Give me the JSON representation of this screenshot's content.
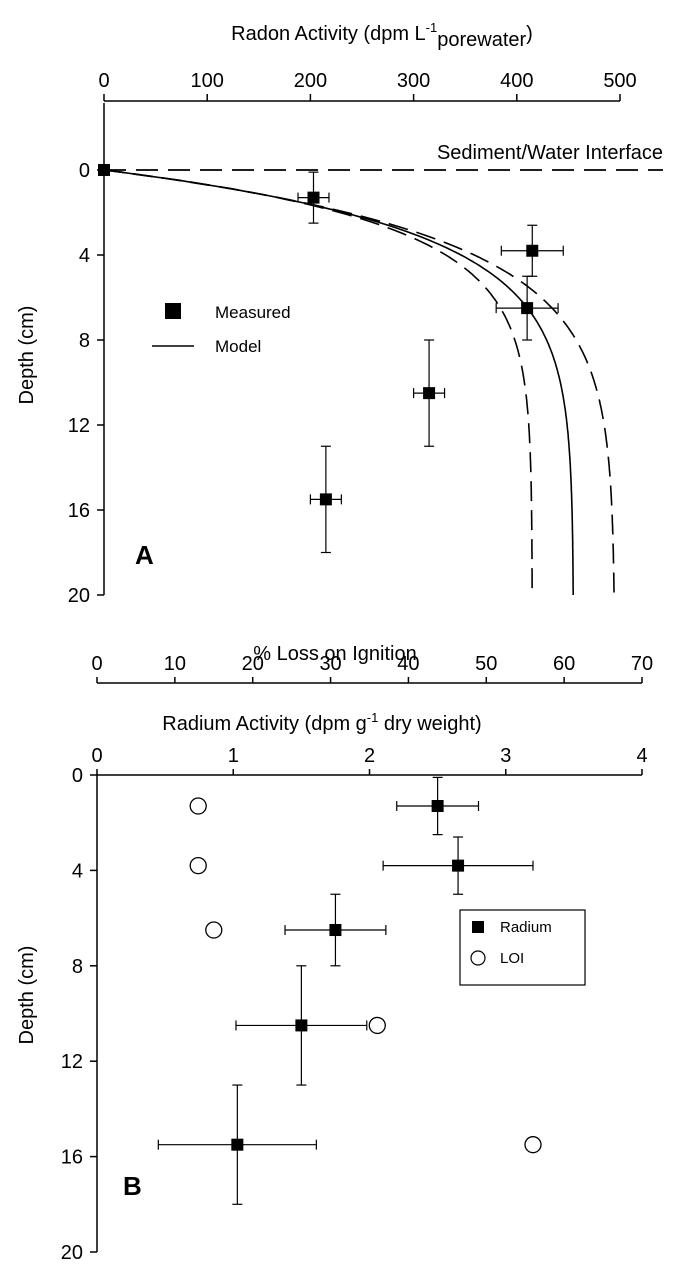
{
  "chart_data": [
    {
      "panel": "A",
      "type": "scatter",
      "x_axis": {
        "label": "Radon Activity (dpm L",
        "label_sup": "-1",
        "label_sub": "porewater",
        "label_end": ")",
        "range": [
          0,
          500
        ],
        "ticks": [
          0,
          100,
          200,
          300,
          400,
          500
        ],
        "position": "top"
      },
      "y_axis": {
        "label": "Depth (cm)",
        "range": [
          0,
          20
        ],
        "ticks": [
          0,
          4,
          8,
          12,
          16,
          20
        ],
        "inverted": true
      },
      "annotation": "Sediment/Water Interface",
      "panel_label": "A",
      "series": [
        {
          "name": "Measured",
          "style": "filled-square",
          "points": [
            {
              "x": 0,
              "y": 0
            },
            {
              "x": 203,
              "y": 1.3,
              "xerr": 15,
              "yerr": 1.2
            },
            {
              "x": 415,
              "y": 3.8,
              "xerr": 30,
              "yerr": 1.2
            },
            {
              "x": 410,
              "y": 6.5,
              "xerr": 30,
              "yerr": 1.5
            },
            {
              "x": 315,
              "y": 10.5,
              "xerr": 15,
              "yerr": 2.5
            },
            {
              "x": 215,
              "y": 15.5,
              "xerr": 15,
              "yerr": 2.5
            }
          ]
        },
        {
          "name": "Model",
          "style": "solid-line",
          "curve": {
            "asymptote": 455,
            "scale_depth": 2.8
          }
        },
        {
          "style": "dashed-line",
          "curve": {
            "asymptote": 415,
            "scale_depth": 2.5
          }
        },
        {
          "style": "dashed-line",
          "curve": {
            "asymptote": 495,
            "scale_depth": 3.1
          }
        }
      ],
      "interface_line": {
        "y": 0,
        "style": "dashed"
      }
    },
    {
      "panel": "B",
      "type": "scatter",
      "x_axis_top": {
        "label": "% Loss on Ignition",
        "range": [
          0,
          70
        ],
        "ticks": [
          0,
          10,
          20,
          30,
          40,
          50,
          60,
          70
        ]
      },
      "x_axis": {
        "label": "Radium Activity (dpm g",
        "label_sup": "-1",
        "label_end": " dry weight)",
        "range": [
          0,
          4
        ],
        "ticks": [
          0,
          1,
          2,
          3,
          4
        ]
      },
      "y_axis": {
        "label": "Depth (cm)",
        "range": [
          0,
          20
        ],
        "ticks": [
          0,
          4,
          8,
          12,
          16,
          20
        ],
        "inverted": true
      },
      "panel_label": "B",
      "series": [
        {
          "name": "Radium",
          "axis": "radium",
          "style": "filled-square",
          "points": [
            {
              "x": 2.5,
              "y": 1.3,
              "xerr": 0.3,
              "yerr": 1.2
            },
            {
              "x": 2.65,
              "y": 3.8,
              "xerr": 0.55,
              "yerr": 1.2
            },
            {
              "x": 1.75,
              "y": 6.5,
              "xerr": 0.37,
              "yerr": 1.5
            },
            {
              "x": 1.5,
              "y": 10.5,
              "xerr": 0.48,
              "yerr": 2.5
            },
            {
              "x": 1.03,
              "y": 15.5,
              "xerr": 0.58,
              "yerr": 2.5
            }
          ]
        },
        {
          "name": "LOI",
          "axis": "loi",
          "style": "open-circle",
          "points": [
            {
              "x": 13,
              "y": 1.3
            },
            {
              "x": 13,
              "y": 3.8
            },
            {
              "x": 15,
              "y": 6.5
            },
            {
              "x": 36,
              "y": 10.5
            },
            {
              "x": 56,
              "y": 15.5
            }
          ]
        }
      ]
    }
  ]
}
